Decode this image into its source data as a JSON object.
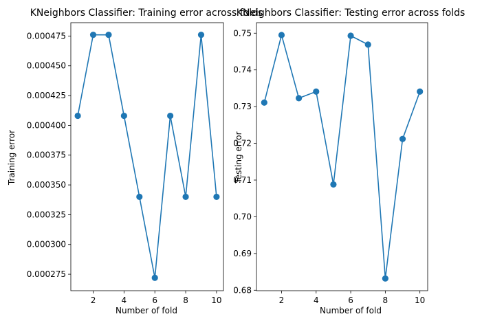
{
  "chart_data": [
    {
      "type": "line",
      "title": "KNeighbors Classifier: Training error across folds",
      "xlabel": "Number of fold",
      "ylabel": "Training error",
      "x": [
        1,
        2,
        3,
        4,
        5,
        6,
        7,
        8,
        9,
        10
      ],
      "series": [
        {
          "values": [
            0.000408,
            0.000476,
            0.000476,
            0.000408,
            0.00034,
            0.000272,
            0.000408,
            0.00034,
            0.000476,
            0.00034
          ],
          "color": "#1f77b4",
          "marker": "circle"
        }
      ],
      "xlim": [
        0.55,
        10.45
      ],
      "ylim": [
        0.0002612,
        0.0004862
      ],
      "xticks": [
        2,
        4,
        6,
        8,
        10
      ],
      "xtick_labels": [
        "2",
        "4",
        "6",
        "8",
        "10"
      ],
      "yticks": [
        0.000275,
        0.0003,
        0.000325,
        0.00035,
        0.000375,
        0.0004,
        0.000425,
        0.00045,
        0.000475
      ],
      "ytick_labels": [
        "0.000275",
        "0.000300",
        "0.000325",
        "0.000350",
        "0.000375",
        "0.000400",
        "0.000425",
        "0.000450",
        "0.000475"
      ],
      "grid": false,
      "legend": "none"
    },
    {
      "type": "line",
      "title": "KNeighbors Classifier: Testing error across folds",
      "xlabel": "Number of fold",
      "ylabel": "Testing error",
      "x": [
        1,
        2,
        3,
        4,
        5,
        6,
        7,
        8,
        9,
        10
      ],
      "series": [
        {
          "values": [
            0.7311,
            0.7495,
            0.7323,
            0.7341,
            0.7088,
            0.7493,
            0.7469,
            0.6832,
            0.7212,
            0.7341
          ],
          "color": "#1f77b4",
          "marker": "circle"
        }
      ],
      "xlim": [
        0.55,
        10.45
      ],
      "ylim": [
        0.67987,
        0.75286
      ],
      "xticks": [
        2,
        4,
        6,
        8,
        10
      ],
      "xtick_labels": [
        "2",
        "4",
        "6",
        "8",
        "10"
      ],
      "yticks": [
        0.68,
        0.69,
        0.7,
        0.71,
        0.72,
        0.73,
        0.74,
        0.75
      ],
      "ytick_labels": [
        "0.68",
        "0.69",
        "0.70",
        "0.71",
        "0.72",
        "0.73",
        "0.74",
        "0.75"
      ],
      "grid": false,
      "legend": "none"
    }
  ]
}
